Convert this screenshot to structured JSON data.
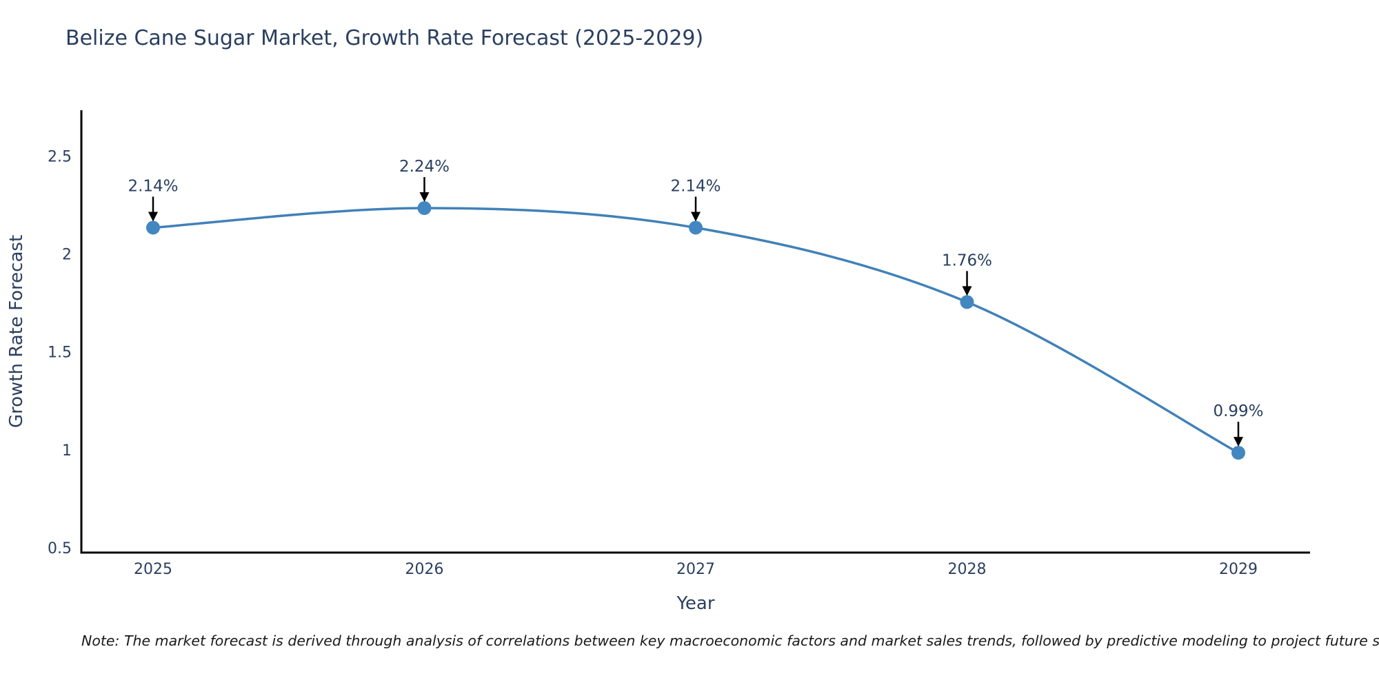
{
  "title": "Belize Cane Sugar Market, Growth Rate Forecast (2025-2029)",
  "note": "Note: The market forecast is derived through analysis of correlations between key macroeconomic factors and market sales trends, followed by predictive modeling to project future sales",
  "colors": {
    "title": "#2a3f5f",
    "axis_line": "#000000",
    "tick_label": "#2a3f5f",
    "axis_title": "#2a3f5f",
    "annotation_text": "#2a3f5f",
    "arrow": "#000000",
    "line": "#4181b8",
    "marker": "#4287c0",
    "background": "#ffffff"
  },
  "chart_data": {
    "type": "line",
    "title": "Belize Cane Sugar Market, Growth Rate Forecast (2025-2029)",
    "xlabel": "Year",
    "ylabel": "Growth Rate Forecast",
    "categories": [
      "2025",
      "2026",
      "2027",
      "2028",
      "2029"
    ],
    "values": [
      2.14,
      2.24,
      2.14,
      1.76,
      0.99
    ],
    "point_labels": [
      "2.14%",
      "2.24%",
      "2.14%",
      "1.76%",
      "0.99%"
    ],
    "y_ticks": [
      0.5,
      1,
      1.5,
      2,
      2.5
    ],
    "y_tick_labels": [
      "0.5",
      "1",
      "1.5",
      "2",
      "2.5"
    ],
    "ylim": [
      0.48,
      2.74
    ],
    "grid": false,
    "legend": false,
    "line_shape": "spline",
    "annotations": "black down-arrows from each percentage label to its data point"
  }
}
